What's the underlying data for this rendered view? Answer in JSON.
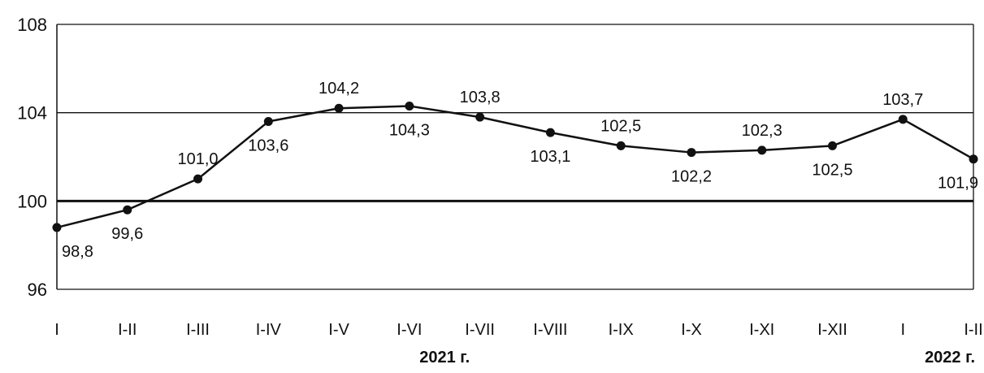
{
  "chart_data": {
    "type": "line",
    "categories": [
      "I",
      "I-II",
      "I-III",
      "I-IV",
      "I-V",
      "I-VI",
      "I-VII",
      "I-VIII",
      "I-IX",
      "I-X",
      "I-XI",
      "I-XII",
      "I",
      "I-II"
    ],
    "series": [
      {
        "values": [
          98.8,
          99.6,
          101.0,
          103.6,
          104.2,
          104.3,
          103.8,
          103.1,
          102.5,
          102.2,
          102.3,
          102.5,
          103.7,
          101.9
        ],
        "labels": [
          "98,8",
          "99,6",
          "101,0",
          "103,6",
          "104,2",
          "104,3",
          "103,8",
          "103,1",
          "102,5",
          "102,2",
          "102,3",
          "102,5",
          "103,7",
          "101,9"
        ],
        "label_positions": [
          "below",
          "below",
          "above",
          "below",
          "above",
          "below",
          "above",
          "below",
          "above",
          "below",
          "above",
          "below",
          "above",
          "below"
        ]
      }
    ],
    "yticks": [
      96,
      100,
      104,
      108
    ],
    "ytick_labels": [
      "96",
      "100",
      "104",
      "108"
    ],
    "ylim": [
      96,
      108
    ],
    "reference_line": 100,
    "grid": "horizontal",
    "year_labels": [
      {
        "text": "2021 г.",
        "span": [
          0,
          11
        ]
      },
      {
        "text": "2022 г.",
        "span": [
          12,
          13
        ]
      }
    ],
    "color": "#111111"
  }
}
